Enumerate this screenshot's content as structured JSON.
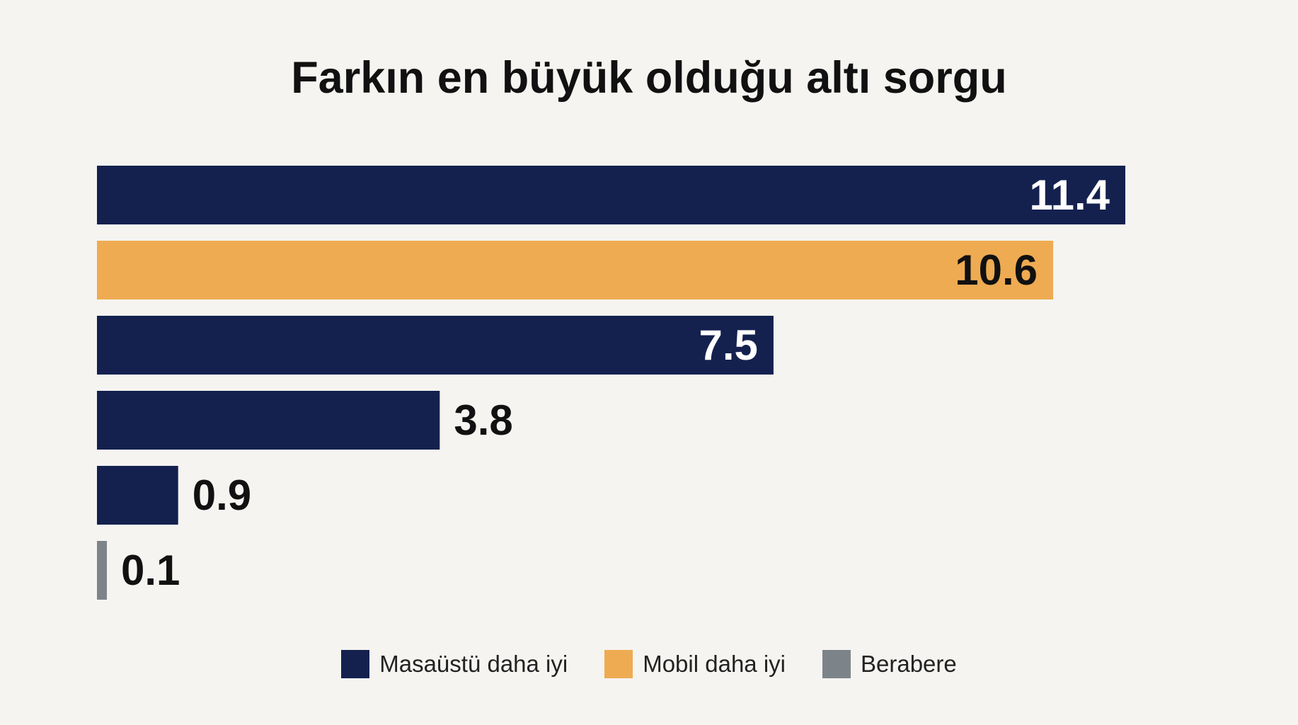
{
  "chart_data": {
    "type": "bar",
    "orientation": "horizontal",
    "title": "Farkın en büyük olduğu altı sorgu",
    "xlabel": "",
    "ylabel": "",
    "xlim": [
      0,
      11.4
    ],
    "grid": false,
    "legend_position": "bottom",
    "values": [
      11.4,
      10.6,
      7.5,
      3.8,
      0.9,
      0.1
    ],
    "data_labels": [
      "11.4",
      "10.6",
      "7.5",
      "3.8",
      "0.9",
      "0.1"
    ],
    "value_series": [
      "desktop",
      "mobile",
      "desktop",
      "desktop",
      "desktop",
      "tie"
    ],
    "series": [
      {
        "key": "desktop",
        "name": "Masaüstü daha iyi",
        "color": "#14214f"
      },
      {
        "key": "mobile",
        "name": "Mobil daha iyi",
        "color": "#eeab52"
      },
      {
        "key": "tie",
        "name": "Berabere",
        "color": "#7d8489"
      }
    ]
  }
}
